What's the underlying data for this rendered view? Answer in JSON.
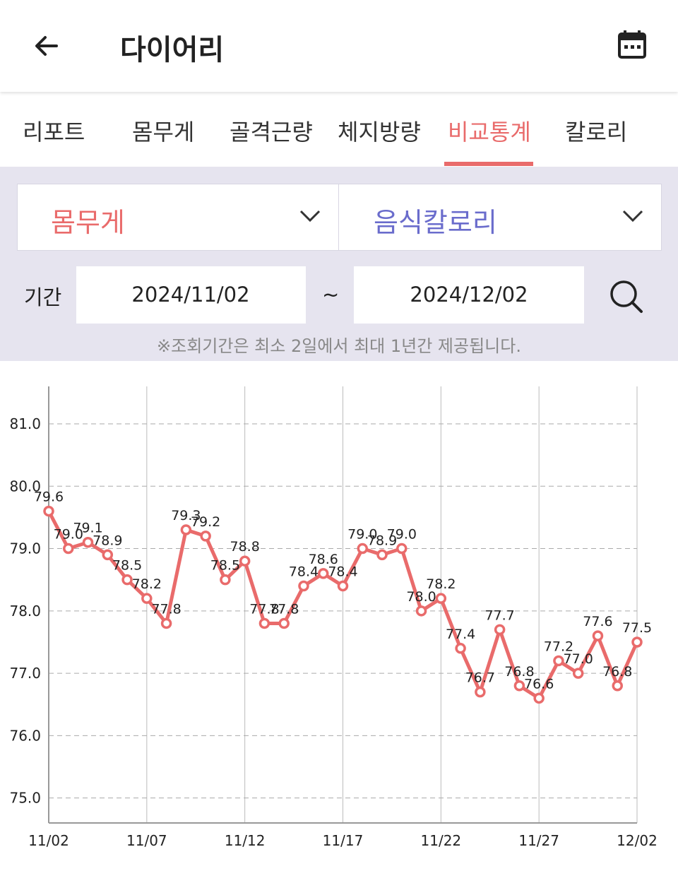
{
  "header": {
    "title": "다이어리"
  },
  "tabs": [
    "리포트",
    "몸무게",
    "골격근량",
    "체지방량",
    "비교통계",
    "칼로리"
  ],
  "selectors": [
    "몸무게",
    "음식칼로리"
  ],
  "period": {
    "label": "기간",
    "start": "2024/11/02",
    "separator": "~",
    "end": "2024/12/02",
    "note": "※조회기간은 최소 2일에서 최대 1년간 제공됩니다."
  },
  "chart_data": {
    "type": "line",
    "categories": [
      "11/02",
      null,
      null,
      null,
      null,
      "11/07",
      null,
      null,
      null,
      null,
      "11/12",
      null,
      null,
      null,
      null,
      "11/17",
      null,
      null,
      null,
      null,
      "11/22",
      null,
      null,
      null,
      null,
      "11/27",
      null,
      null,
      null,
      null,
      "12/02"
    ],
    "series": [
      {
        "color": "#e96b6b",
        "values": [
          79.6,
          79.0,
          79.1,
          78.9,
          78.5,
          78.2,
          77.8,
          79.3,
          79.2,
          78.5,
          78.8,
          77.8,
          77.8,
          78.4,
          78.6,
          78.4,
          79.0,
          78.9,
          79.0,
          78.0,
          78.2,
          77.4,
          76.7,
          77.7,
          76.8,
          76.6,
          77.2,
          77.0,
          77.6,
          76.8,
          77.5
        ],
        "value_labels": [
          "79.6",
          "79.0",
          "79.1",
          "78.9",
          "78.5",
          "78.2",
          "77.8",
          "79.3",
          "79.2",
          "78.5",
          "78.8",
          "77.8",
          "77.8",
          "78.4",
          "78.6",
          "78.4",
          "79.0",
          "78.9",
          "79.0",
          "78.0",
          "78.2",
          "77.4",
          "76.7",
          "77.7",
          "76.8",
          "76.6",
          "77.2",
          "77.0",
          "77.6",
          "76.8",
          "77.5"
        ]
      }
    ],
    "ylim": [
      74.6,
      81.6
    ],
    "yticks": [
      {
        "value": 75,
        "label": "75.0"
      },
      {
        "value": 76,
        "label": "76.0"
      },
      {
        "value": 77,
        "label": "77.0"
      },
      {
        "value": 78,
        "label": "78.0"
      },
      {
        "value": 79,
        "label": "79.0"
      },
      {
        "value": 80,
        "label": "80.0"
      },
      {
        "value": 81,
        "label": "81.0"
      }
    ],
    "grid": true
  }
}
